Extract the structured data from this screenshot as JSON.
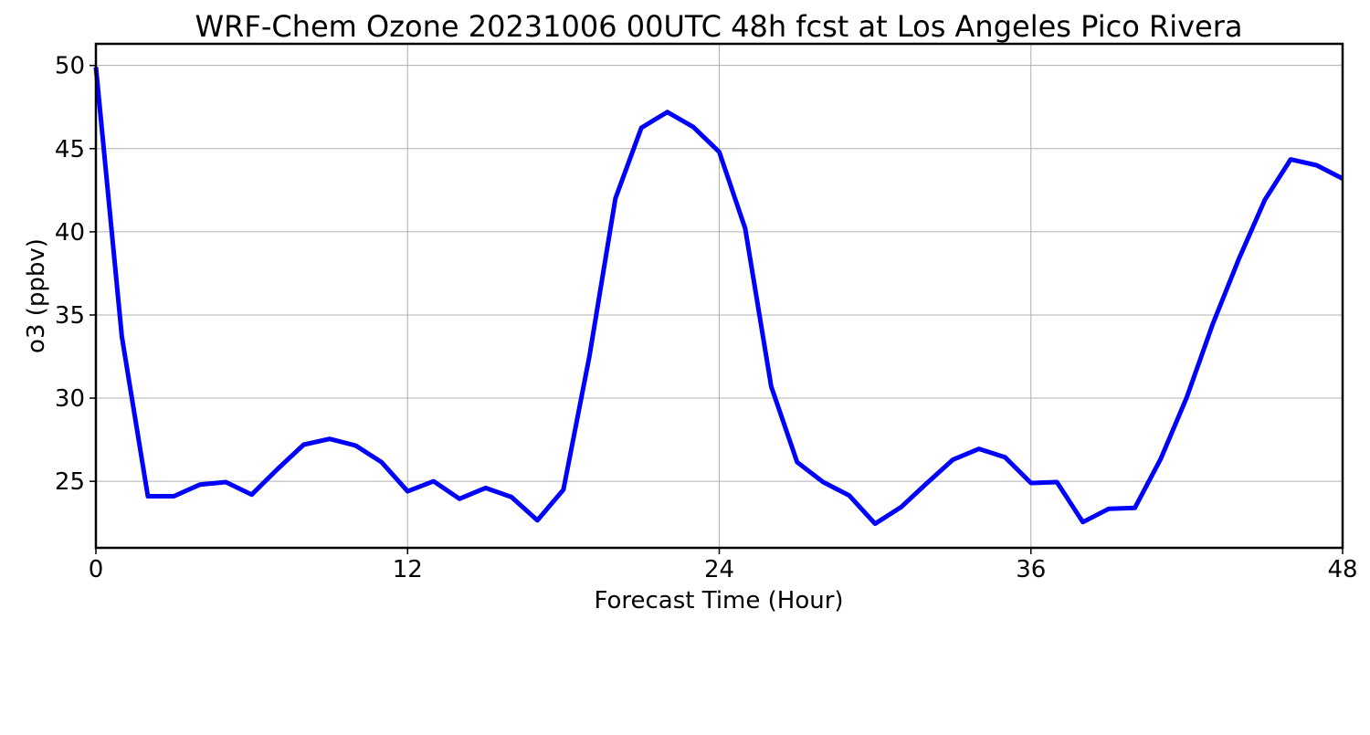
{
  "chart_data": {
    "type": "line",
    "title": "WRF-Chem Ozone  20231006 00UTC 48h fcst at Los Angeles Pico Rivera",
    "xlabel": "Forecast Time (Hour)",
    "ylabel": "o3  (ppbv)",
    "xlim": [
      0,
      48
    ],
    "ylim": [
      21.0,
      51.3
    ],
    "xticks": [
      0,
      12,
      24,
      36,
      48
    ],
    "yticks": [
      25,
      30,
      35,
      40,
      45,
      50
    ],
    "grid": true,
    "line_color": "#0000ff",
    "series": [
      {
        "x": [
          0,
          1,
          2,
          3,
          4,
          5,
          6,
          7,
          8,
          9,
          10,
          11,
          12,
          13,
          14,
          15,
          16,
          17,
          18,
          19,
          20,
          21,
          22,
          23,
          24,
          25,
          26,
          27,
          28,
          29,
          30,
          31,
          32,
          33,
          34,
          35,
          36,
          37,
          38,
          39,
          40,
          41,
          42,
          43,
          44,
          45,
          46,
          47,
          48
        ],
        "values": [
          49.9,
          33.7,
          24.1,
          24.1,
          24.8,
          24.95,
          24.2,
          25.75,
          27.2,
          27.55,
          27.15,
          26.15,
          24.4,
          25.0,
          23.95,
          24.6,
          24.05,
          22.65,
          24.5,
          32.5,
          42.0,
          46.25,
          47.2,
          46.3,
          44.8,
          40.2,
          30.7,
          26.15,
          24.95,
          24.15,
          22.45,
          23.45,
          24.9,
          26.3,
          26.95,
          26.45,
          24.9,
          24.95,
          22.55,
          23.35,
          23.4,
          26.35,
          30.05,
          34.45,
          38.35,
          41.9,
          44.35,
          44.0,
          43.2
        ]
      }
    ]
  }
}
